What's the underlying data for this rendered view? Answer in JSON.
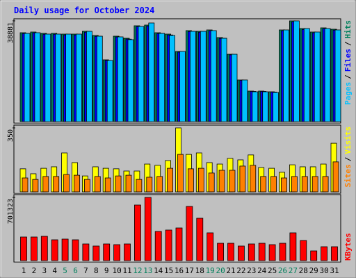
{
  "chart_data": [
    {
      "type": "bar",
      "title": "Daily usage for October 2024",
      "ylim": [
        0,
        38881
      ],
      "yticks": [
        38881
      ],
      "legend_separator": "/",
      "series": [
        {
          "name": "Hits",
          "color": "#00805c",
          "values": [
            34317,
            34585,
            34049,
            34049,
            33781,
            33781,
            34853,
            33244,
            23861,
            32976,
            32172,
            36998,
            37266,
            34317,
            33781,
            27078,
            35121,
            34853,
            35389,
            32440,
            26006,
            16086,
            11796,
            11796,
            11528,
            35389,
            38881,
            35925,
            34585,
            36194,
            35657
          ]
        },
        {
          "name": "Files",
          "color": "#0000ff",
          "values": [
            33970,
            34240,
            33710,
            33710,
            33440,
            33440,
            34500,
            32910,
            23620,
            32650,
            31850,
            36630,
            36890,
            33970,
            33440,
            26810,
            34770,
            34500,
            35030,
            32120,
            25750,
            15930,
            11680,
            11680,
            11410,
            35030,
            38490,
            35570,
            34240,
            35830,
            35300
          ]
        },
        {
          "name": "Pages",
          "color": "#00c0ff",
          "values": [
            34049,
            34317,
            33781,
            33781,
            33781,
            33781,
            34853,
            32976,
            23593,
            32708,
            31636,
            36730,
            38071,
            34049,
            33244,
            27078,
            34853,
            34853,
            35121,
            32172,
            26006,
            16086,
            11528,
            11528,
            11260,
            35389,
            38881,
            35925,
            34585,
            35925,
            35389
          ]
        }
      ]
    },
    {
      "type": "bar",
      "ylim": [
        0,
        350
      ],
      "yticks": [
        350
      ],
      "legend_separator": "/",
      "series": [
        {
          "name": "Visits",
          "color": "#ffff00",
          "values": [
            126,
            99,
            129,
            137,
            213,
            160,
            87,
            137,
            129,
            126,
            114,
            114,
            152,
            145,
            171,
            350,
            205,
            213,
            160,
            152,
            183,
            175,
            202,
            133,
            129,
            107,
            148,
            137,
            137,
            152,
            266
          ]
        },
        {
          "name": "Sites",
          "color": "#ff8000",
          "values": [
            76,
            68,
            84,
            84,
            95,
            91,
            68,
            84,
            76,
            87,
            91,
            68,
            80,
            84,
            129,
            205,
            126,
            129,
            103,
            118,
            118,
            141,
            145,
            84,
            84,
            76,
            84,
            84,
            84,
            84,
            164
          ]
        }
      ]
    },
    {
      "type": "bar",
      "ylim": [
        0,
        701323
      ],
      "yticks": [
        701323
      ],
      "categories": [
        "1",
        "2",
        "3",
        "4",
        "5",
        "6",
        "7",
        "8",
        "9",
        "10",
        "11",
        "12",
        "13",
        "14",
        "15",
        "16",
        "17",
        "18",
        "19",
        "20",
        "21",
        "22",
        "23",
        "24",
        "25",
        "26",
        "27",
        "28",
        "29",
        "30",
        "31"
      ],
      "category_colors": [
        "#000000",
        "#000000",
        "#000000",
        "#000000",
        "#00805c",
        "#00805c",
        "#000000",
        "#000000",
        "#000000",
        "#000000",
        "#000000",
        "#00805c",
        "#00805c",
        "#000000",
        "#000000",
        "#000000",
        "#000000",
        "#000000",
        "#00805c",
        "#00805c",
        "#000000",
        "#000000",
        "#000000",
        "#000000",
        "#000000",
        "#00805c",
        "#00805c",
        "#000000",
        "#000000",
        "#000000",
        "#000000"
      ],
      "series": [
        {
          "name": "KBytes",
          "color": "#ff0000",
          "values": [
            262038,
            262038,
            269745,
            231210,
            238917,
            231210,
            184968,
            161847,
            184968,
            177261,
            184968,
            616560,
            701323,
            323694,
            339108,
            362229,
            601146,
            470127,
            308280,
            192675,
            192675,
            161847,
            184968,
            192675,
            177261,
            192675,
            308280,
            223503,
            107898,
            154140,
            154140
          ]
        }
      ]
    }
  ]
}
